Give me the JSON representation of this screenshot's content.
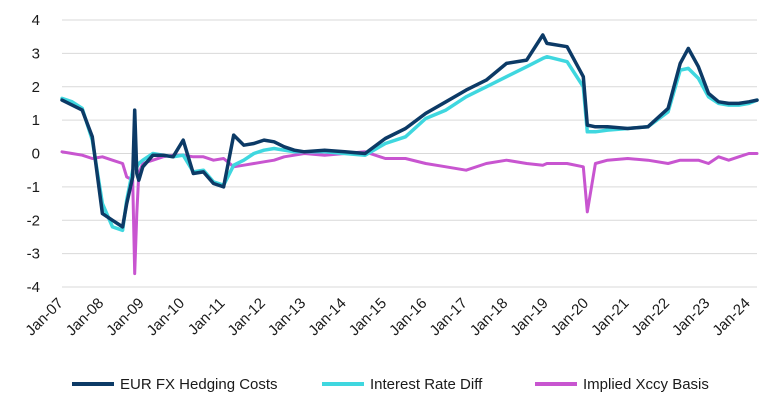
{
  "chart_data": {
    "type": "line",
    "title": "",
    "xlabel": "",
    "ylabel": "",
    "ylim": [
      -4,
      4
    ],
    "y_ticks": [
      "4",
      "3",
      "2",
      "1",
      "0",
      "-1",
      "-2",
      "-3",
      "-4"
    ],
    "x_ticks": [
      "Jan-07",
      "Jan-08",
      "Jan-09",
      "Jan-10",
      "Jan-11",
      "Jan-12",
      "Jan-13",
      "Jan-14",
      "Jan-15",
      "Jan-16",
      "Jan-17",
      "Jan-18",
      "Jan-19",
      "Jan-20",
      "Jan-21",
      "Jan-22",
      "Jan-23",
      "Jan-24"
    ],
    "grid": "horizontal",
    "legend_position": "bottom",
    "x": [
      2007.0,
      2007.25,
      2007.5,
      2007.75,
      2008.0,
      2008.25,
      2008.5,
      2008.6,
      2008.75,
      2008.8,
      2008.85,
      2008.9,
      2009.0,
      2009.25,
      2009.5,
      2009.75,
      2010.0,
      2010.25,
      2010.5,
      2010.75,
      2011.0,
      2011.25,
      2011.5,
      2011.75,
      2012.0,
      2012.25,
      2012.5,
      2012.75,
      2013.0,
      2013.5,
      2014.0,
      2014.5,
      2015.0,
      2015.5,
      2016.0,
      2016.5,
      2017.0,
      2017.5,
      2018.0,
      2018.5,
      2018.9,
      2019.0,
      2019.5,
      2019.9,
      2020.0,
      2020.2,
      2020.5,
      2021.0,
      2021.5,
      2022.0,
      2022.3,
      2022.5,
      2022.75,
      2023.0,
      2023.25,
      2023.5,
      2023.75,
      2024.0,
      2024.2
    ],
    "series": [
      {
        "name": "EUR FX Hedging Costs",
        "color": "#0c3a66",
        "width": 3.5,
        "values": [
          1.6,
          1.45,
          1.3,
          0.5,
          -1.8,
          -2.0,
          -2.2,
          -1.5,
          -0.7,
          1.3,
          -0.6,
          -0.8,
          -0.4,
          -0.05,
          -0.05,
          -0.1,
          0.4,
          -0.6,
          -0.55,
          -0.9,
          -1.0,
          0.55,
          0.25,
          0.3,
          0.4,
          0.35,
          0.2,
          0.1,
          0.05,
          0.1,
          0.05,
          0.0,
          0.45,
          0.75,
          1.2,
          1.55,
          1.9,
          2.2,
          2.7,
          2.8,
          3.55,
          3.3,
          3.2,
          2.3,
          0.85,
          0.8,
          0.8,
          0.75,
          0.8,
          1.35,
          2.7,
          3.15,
          2.6,
          1.8,
          1.55,
          1.5,
          1.5,
          1.55,
          1.6
        ]
      },
      {
        "name": "Interest Rate Diff",
        "color": "#3fd7df",
        "width": 3.5,
        "values": [
          1.65,
          1.55,
          1.35,
          0.4,
          -1.5,
          -2.2,
          -2.3,
          -1.4,
          -0.5,
          -0.4,
          -0.4,
          -0.3,
          -0.2,
          0.0,
          -0.05,
          -0.1,
          -0.05,
          -0.55,
          -0.5,
          -0.85,
          -0.95,
          -0.35,
          -0.2,
          0.0,
          0.1,
          0.15,
          0.1,
          0.05,
          0.05,
          0.05,
          0.0,
          -0.05,
          0.3,
          0.5,
          1.05,
          1.3,
          1.7,
          2.0,
          2.3,
          2.6,
          2.85,
          2.9,
          2.75,
          2.0,
          0.65,
          0.65,
          0.7,
          0.75,
          0.8,
          1.25,
          2.5,
          2.55,
          2.25,
          1.7,
          1.5,
          1.45,
          1.45,
          1.5,
          1.6
        ]
      },
      {
        "name": "Implied Xccy Basis",
        "color": "#c855d0",
        "width": 3.0,
        "values": [
          0.05,
          0.0,
          -0.05,
          -0.15,
          -0.1,
          -0.2,
          -0.3,
          -0.7,
          -0.8,
          -3.6,
          -1.8,
          -0.6,
          -0.3,
          -0.2,
          -0.1,
          -0.05,
          -0.05,
          -0.1,
          -0.1,
          -0.2,
          -0.15,
          -0.4,
          -0.35,
          -0.3,
          -0.25,
          -0.2,
          -0.1,
          -0.05,
          0.0,
          -0.05,
          0.0,
          0.05,
          -0.15,
          -0.15,
          -0.3,
          -0.4,
          -0.5,
          -0.3,
          -0.2,
          -0.3,
          -0.35,
          -0.3,
          -0.3,
          -0.4,
          -1.75,
          -0.3,
          -0.2,
          -0.15,
          -0.2,
          -0.3,
          -0.2,
          -0.2,
          -0.2,
          -0.3,
          -0.1,
          -0.2,
          -0.1,
          0.0,
          0.0
        ]
      }
    ]
  }
}
